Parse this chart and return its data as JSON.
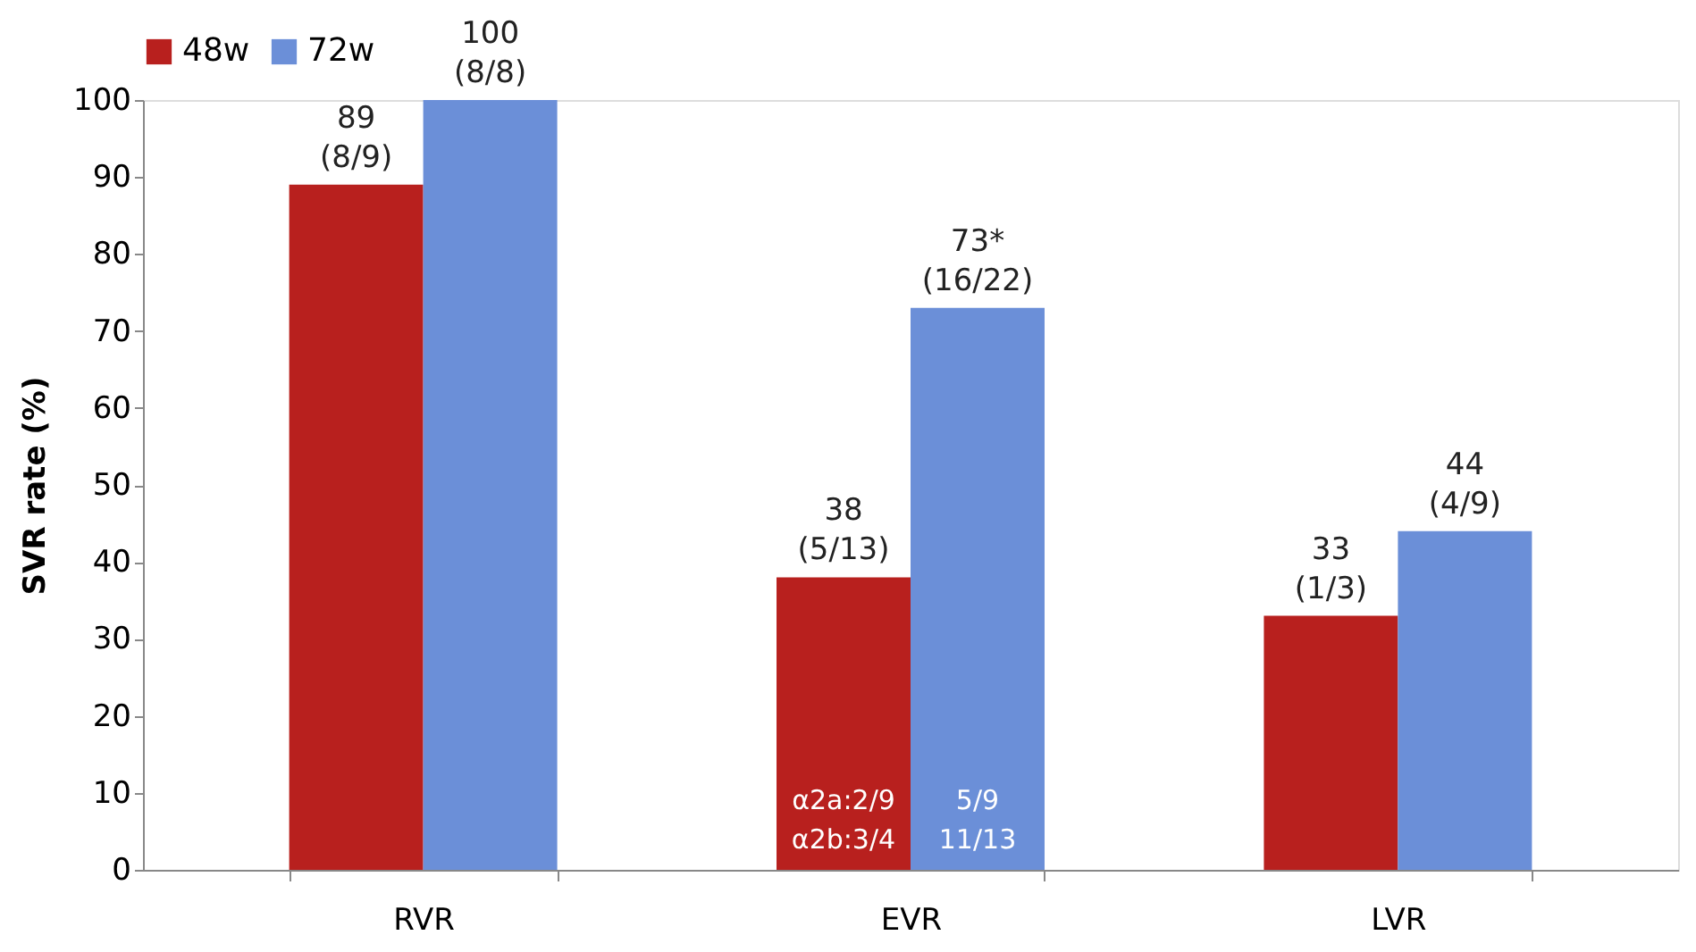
{
  "chart_data": {
    "type": "bar",
    "ylabel": "SVR rate (%)",
    "categories": [
      "RVR",
      "EVR",
      "LVR"
    ],
    "series": [
      {
        "name": "48w",
        "color": "#b8201e",
        "values": [
          89,
          38,
          33
        ],
        "value_labels": [
          "89\n(8/9)",
          "38\n(5/13)",
          "33\n(1/3)"
        ]
      },
      {
        "name": "72w",
        "color": "#6b8fd8",
        "values": [
          100,
          73,
          44
        ],
        "value_labels": [
          "100\n(8/8)",
          "73*\n(16/22)",
          "44\n(4/9)"
        ]
      }
    ],
    "annotations": [
      {
        "text": "α2a:2/9\nα2b:3/4",
        "x": "EVR",
        "y": 9
      },
      {
        "text": "5/9\n11/13",
        "x": "EVR",
        "y": 9
      }
    ],
    "ylim": [
      0,
      100
    ],
    "yticks": [
      0,
      10,
      20,
      30,
      40,
      50,
      60,
      70,
      80,
      90,
      100
    ],
    "grid": false,
    "legend": "top"
  }
}
